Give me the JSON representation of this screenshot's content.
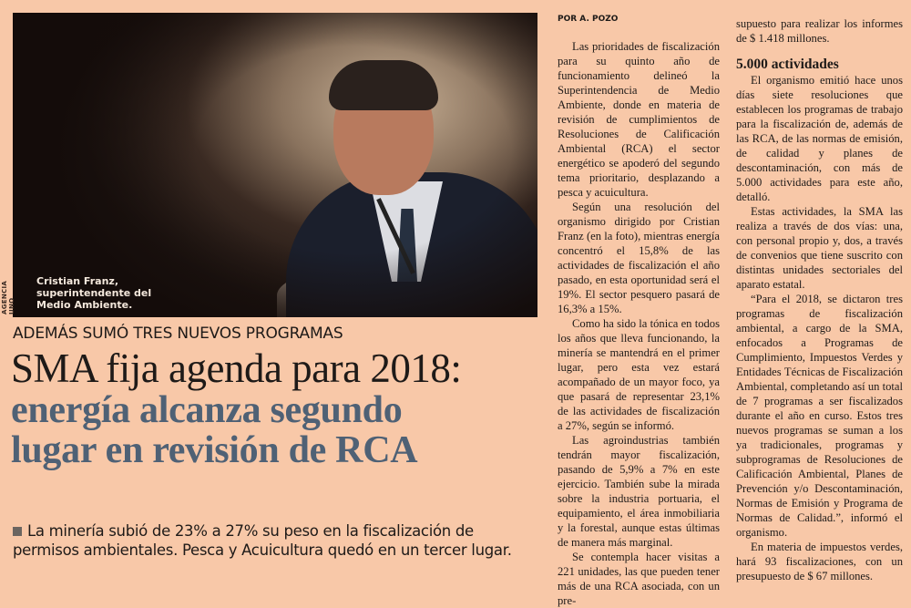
{
  "photo": {
    "credit": "AGENCIA UNO",
    "caption": [
      "Cristian Franz,",
      "superintendente del",
      "Medio Ambiente."
    ]
  },
  "kicker": "ADEMÁS SUMÓ TRES NUEVOS PROGRAMAS",
  "headline": {
    "line1": "SMA fija agenda para 2018:",
    "line2": "energía alcanza segundo",
    "line3": "lugar en revisión de RCA",
    "accent_color": "#4f6175"
  },
  "deck": "La minería subió de 23% a 27% su peso en la fiscalización de permisos ambientales. Pesca y Acuicultura quedó en un tercer lugar.",
  "byline": "POR A. POZO",
  "column1": [
    "Las prioridades de fiscalización para su quinto año de funcionamiento delineó la Superintendencia de Medio Ambiente, donde en materia de revisión de cumplimientos de Resoluciones de Calificación Ambiental (RCA) el sector energético se apoderó del segundo tema prioritario, desplazando a pesca y acuicultura.",
    "Según una resolución del organismo dirigido por Cristian Franz (en la foto), mientras energía concentró el 15,8% de las actividades de fiscalización el año pasado, en esta oportunidad será el 19%. El sector pesquero pasará de 16,3% a 15%.",
    "Como ha sido la tónica en todos los años que lleva funcionando, la minería se mantendrá en el primer lugar, pero esta vez estará acompañado de un mayor foco, ya que pasará de representar 23,1% de las actividades de fiscalización a 27%, según se informó.",
    "Las agroindustrias también tendrán mayor fiscalización, pasando de 5,9% a 7% en este ejercicio. También sube la mirada sobre la industria portuaria, el equipamiento, el área inmobiliaria y la forestal, aunque estas últimas de manera más marginal.",
    "Se contempla hacer visitas a 221 unidades, las que pueden tener más de una RCA asociada, con un pre-"
  ],
  "column2": {
    "continuation": "supuesto para realizar los informes de $ 1.418 millones.",
    "subheading": "5.000 actividades",
    "paragraphs": [
      "El organismo emitió hace unos días siete resoluciones que establecen los programas de trabajo para la fiscalización de, además de las RCA, de las normas de emisión, de calidad y planes de descontaminación, con más de 5.000 actividades para este año, detalló.",
      "Estas actividades, la SMA las realiza a través de dos vías: una, con personal propio y, dos, a través de convenios que tiene suscrito con distintas unidades sectoriales del aparato estatal.",
      "“Para el 2018, se dictaron tres programas de fiscalización ambiental, a cargo de la SMA, enfocados a Programas de Cumplimiento, Impuestos Verdes y Entidades Técnicas de Fiscalización Ambiental, completando así un total de 7 programas a ser fiscalizados durante el año en curso. Estos tres nuevos programas se suman a los ya tradicionales, programas y subprogramas de Resoluciones de Calificación Ambiental, Planes de Prevención y/o Descontaminación, Normas de Emisión y Programa de Normas de Calidad.”, informó el organismo.",
      "En materia de impuestos verdes, hará 93 fiscalizaciones, con un presupuesto de $ 67 millones."
    ]
  }
}
